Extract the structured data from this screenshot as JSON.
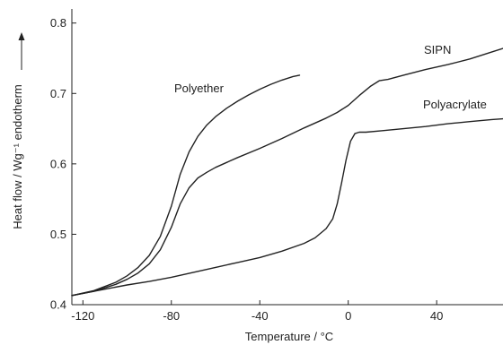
{
  "chart_data": {
    "type": "line",
    "xlabel": "Temperature / °C",
    "ylabel": "Heat flow / Wg⁻¹ endotherm",
    "xlim": [
      -125,
      70
    ],
    "ylim": [
      0.4,
      0.82
    ],
    "xticks": [
      -120,
      -80,
      -40,
      0,
      40
    ],
    "yticks": [
      0.4,
      0.5,
      0.6,
      0.7,
      0.8
    ],
    "xtick_labels": [
      "-120",
      "-80",
      "-40",
      "0",
      "40"
    ],
    "ytick_labels": [
      "0.4",
      "0.5",
      "0.6",
      "0.7",
      "0.8"
    ],
    "grid": false,
    "series": [
      {
        "name": "Polyether",
        "x": [
          -125,
          -115,
          -105,
          -100,
          -95,
          -90,
          -85,
          -80,
          -76,
          -72,
          -68,
          -64,
          -60,
          -55,
          -50,
          -45,
          -40,
          -35,
          -30,
          -25,
          -22
        ],
        "y": [
          0.413,
          0.42,
          0.432,
          0.441,
          0.453,
          0.47,
          0.497,
          0.54,
          0.585,
          0.617,
          0.639,
          0.655,
          0.667,
          0.679,
          0.689,
          0.698,
          0.706,
          0.713,
          0.719,
          0.724,
          0.726
        ]
      },
      {
        "name": "SIPN",
        "x": [
          -125,
          -115,
          -105,
          -100,
          -95,
          -90,
          -85,
          -80,
          -76,
          -72,
          -68,
          -64,
          -60,
          -55,
          -50,
          -40,
          -30,
          -20,
          -10,
          -5,
          0,
          5,
          10,
          14,
          18,
          25,
          35,
          45,
          55,
          65,
          70
        ],
        "y": [
          0.413,
          0.419,
          0.429,
          0.436,
          0.445,
          0.458,
          0.478,
          0.51,
          0.543,
          0.566,
          0.58,
          0.588,
          0.595,
          0.602,
          0.609,
          0.622,
          0.636,
          0.651,
          0.665,
          0.673,
          0.683,
          0.697,
          0.71,
          0.718,
          0.72,
          0.726,
          0.734,
          0.741,
          0.749,
          0.759,
          0.764
        ]
      },
      {
        "name": "Polyacrylate",
        "x": [
          -125,
          -110,
          -100,
          -90,
          -80,
          -70,
          -60,
          -50,
          -40,
          -30,
          -20,
          -15,
          -10,
          -7,
          -5,
          -3,
          -1,
          1,
          3,
          5,
          8,
          15,
          25,
          35,
          45,
          55,
          65,
          70
        ],
        "y": [
          0.413,
          0.422,
          0.428,
          0.433,
          0.439,
          0.446,
          0.453,
          0.46,
          0.467,
          0.476,
          0.487,
          0.495,
          0.508,
          0.522,
          0.543,
          0.573,
          0.605,
          0.632,
          0.643,
          0.645,
          0.645,
          0.647,
          0.65,
          0.653,
          0.657,
          0.66,
          0.663,
          0.664
        ]
      }
    ],
    "annotations": [
      {
        "text": "Polyether",
        "series": "Polyether"
      },
      {
        "text": "SIPN",
        "series": "SIPN"
      },
      {
        "text": "Polyacrylate",
        "series": "Polyacrylate"
      }
    ]
  }
}
